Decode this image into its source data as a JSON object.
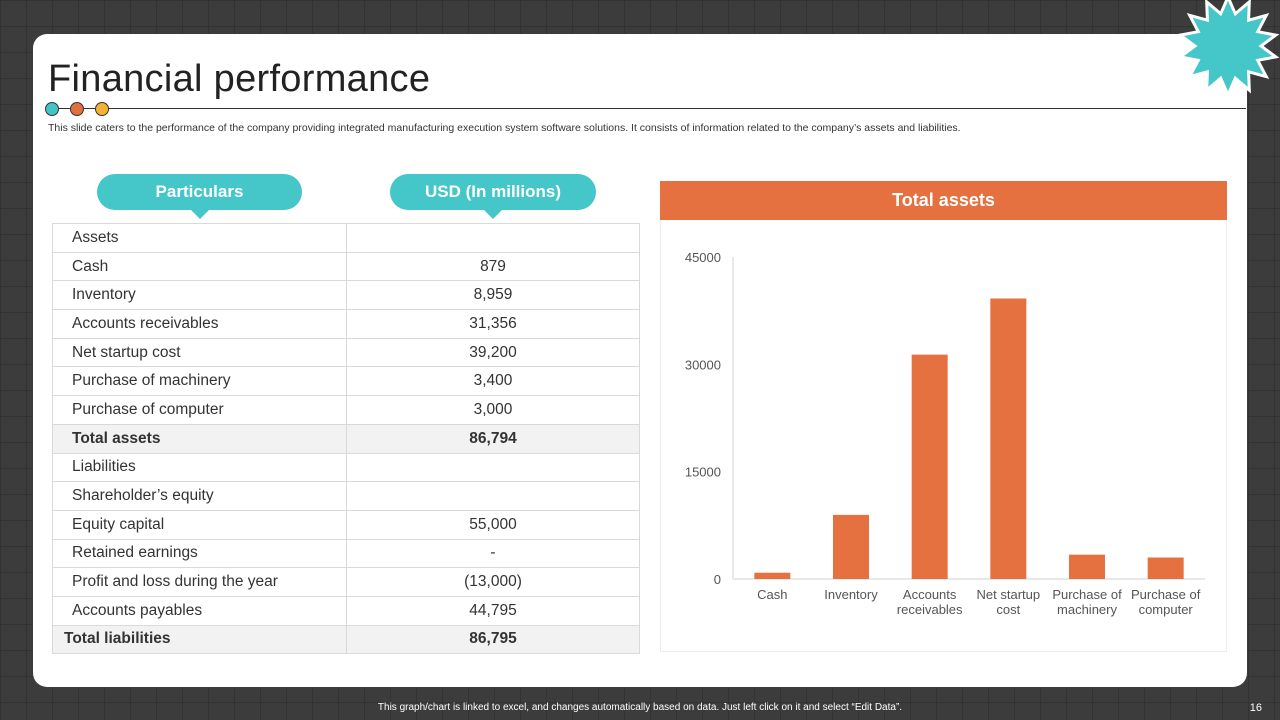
{
  "slide": {
    "title": "Financial performance",
    "subtitle": "This slide caters to the performance of the company providing integrated manufacturing execution system software solutions. It consists of information related to the company’s assets and liabilities.",
    "footer_note": "This graph/chart is linked to excel, and changes automatically based on data. Just left click on it and select “Edit Data”.",
    "page_number": "16"
  },
  "colors": {
    "accent_teal": "#45c6c8",
    "accent_orange": "#e67140",
    "accent_yellow": "#f2b233"
  },
  "table": {
    "headers": [
      "Particulars",
      "USD (In millions)"
    ],
    "rows": [
      {
        "label": "Assets",
        "value": ""
      },
      {
        "label": "Cash",
        "value": "879"
      },
      {
        "label": "Inventory",
        "value": "8,959"
      },
      {
        "label": "Accounts receivables",
        "value": "31,356"
      },
      {
        "label": "Net startup cost",
        "value": "39,200"
      },
      {
        "label": "Purchase of machinery",
        "value": "3,400"
      },
      {
        "label": "Purchase of computer",
        "value": "3,000"
      },
      {
        "label": "Total assets",
        "value": "86,794"
      },
      {
        "label": "Liabilities",
        "value": ""
      },
      {
        "label": "Shareholder’s equity",
        "value": ""
      },
      {
        "label": "Equity capital",
        "value": "55,000"
      },
      {
        "label": "Retained earnings",
        "value": "-"
      },
      {
        "label": "Profit and loss during the year",
        "value": "(13,000)"
      },
      {
        "label": "Accounts payables",
        "value": "44,795"
      },
      {
        "label": "Total liabilities",
        "value": "86,795"
      }
    ]
  },
  "chart_data": {
    "type": "bar",
    "title": "Total assets",
    "categories": [
      [
        "Cash"
      ],
      [
        "Inventory"
      ],
      [
        "Accounts",
        "receivables"
      ],
      [
        "Net startup",
        "cost"
      ],
      [
        "Purchase of",
        "machinery"
      ],
      [
        "Purchase of",
        "computer"
      ]
    ],
    "values": [
      879,
      8959,
      31356,
      39200,
      3400,
      3000
    ],
    "ylim": [
      0,
      45000
    ],
    "yticks": [
      0,
      15000,
      30000,
      45000
    ],
    "xlabel": "",
    "ylabel": "",
    "grid": false,
    "legend": "none",
    "color": "#e67140"
  }
}
